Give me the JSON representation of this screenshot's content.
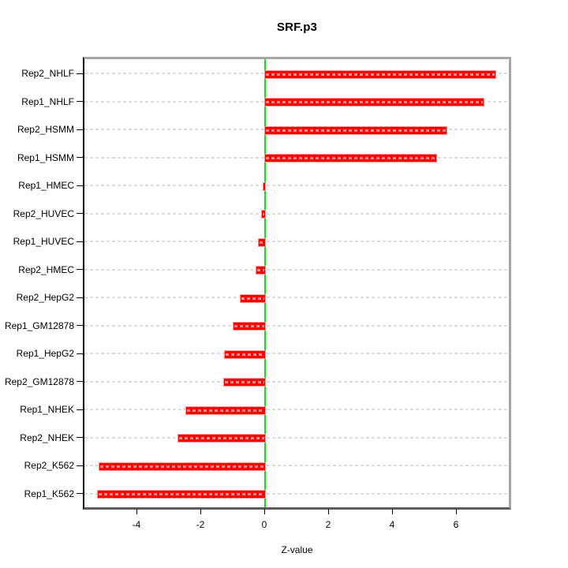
{
  "title": "SRF.p3",
  "chart_data": {
    "type": "bar",
    "orientation": "horizontal",
    "title": "SRF.p3",
    "xlabel": "Z-value",
    "ylabel": "",
    "categories": [
      "Rep2_NHLF",
      "Rep1_NHLF",
      "Rep2_HSMM",
      "Rep1_HSMM",
      "Rep1_HMEC",
      "Rep2_HUVEC",
      "Rep1_HUVEC",
      "Rep2_HMEC",
      "Rep2_HepG2",
      "Rep1_GM12878",
      "Rep1_HepG2",
      "Rep2_GM12878",
      "Rep1_NHEK",
      "Rep2_NHEK",
      "Rep2_K562",
      "Rep1_K562"
    ],
    "values": [
      7.2,
      6.85,
      5.68,
      5.37,
      -0.05,
      -0.1,
      -0.2,
      -0.27,
      -0.76,
      -1.0,
      -1.25,
      -1.28,
      -2.48,
      -2.72,
      -5.19,
      -5.23
    ],
    "x_ticks": [
      -4,
      -2,
      0,
      2,
      4,
      6
    ],
    "x_tick_labels": [
      "-4",
      "-2",
      "0",
      "2",
      "4",
      "6"
    ],
    "xlim": [
      -5.68,
      7.73
    ],
    "grid": true,
    "legend": "none",
    "colors": {
      "bar_fill": "#ff0000",
      "bar_border": "#ff9494",
      "zero_line": "#00ee00",
      "gridline": "#dcdcdc",
      "box_light": "#a6a6a6",
      "box_dark": "#5b5b5b",
      "axis": "#000000"
    }
  }
}
